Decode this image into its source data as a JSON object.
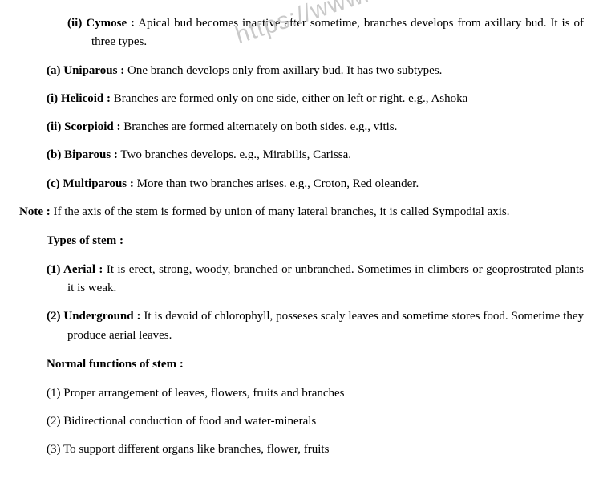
{
  "watermark": "https://www.st",
  "lines": {
    "cymose_head": "(ii)  Cymose :",
    "cymose_body": " Apical bud becomes inactive after sometime, branches develops from axillary bud. It is of three types.",
    "uni_head": "(a)  Uniparous :",
    "uni_body": " One branch develops only from axillary bud. It has two subtypes.",
    "heli_head": "(i)  Helicoid :",
    "heli_body": " Branches are formed only on one side, either on left or right. e.g., Ashoka",
    "scor_head": "(ii)  Scorpioid :",
    "scor_body": " Branches are formed alternately on both sides. e.g., vitis.",
    "bip_head": "(b)  Biparous :",
    "bip_body": " Two branches develops. e.g., Mirabilis, Carissa.",
    "mul_head": "(c)  Multiparous :",
    "mul_body": " More than two branches arises. e.g., Croton, Red oleander.",
    "note_head": "Note :",
    "note_body": " If the axis of the stem is formed by union of many lateral branches, it is called Sympodial axis.",
    "types_head": "Types of stem :",
    "aerial_head": "(1) Aerial :",
    "aerial_body": " It is erect, strong, woody, branched or unbranched. Sometimes in climbers or geoprostrated plants it is weak.",
    "under_head": "(2) Underground :",
    "under_body": " It is devoid of chlorophyll, posseses scaly leaves and sometime stores food. Sometime they produce aerial leaves.",
    "func_head": "Normal functions of stem :",
    "f1": "(1)  Proper arrangement of leaves, flowers, fruits and branches",
    "f2": "(2)  Bidirectional conduction of food and water-minerals",
    "f3": "(3)  To support different organs like branches, flower, fruits"
  }
}
